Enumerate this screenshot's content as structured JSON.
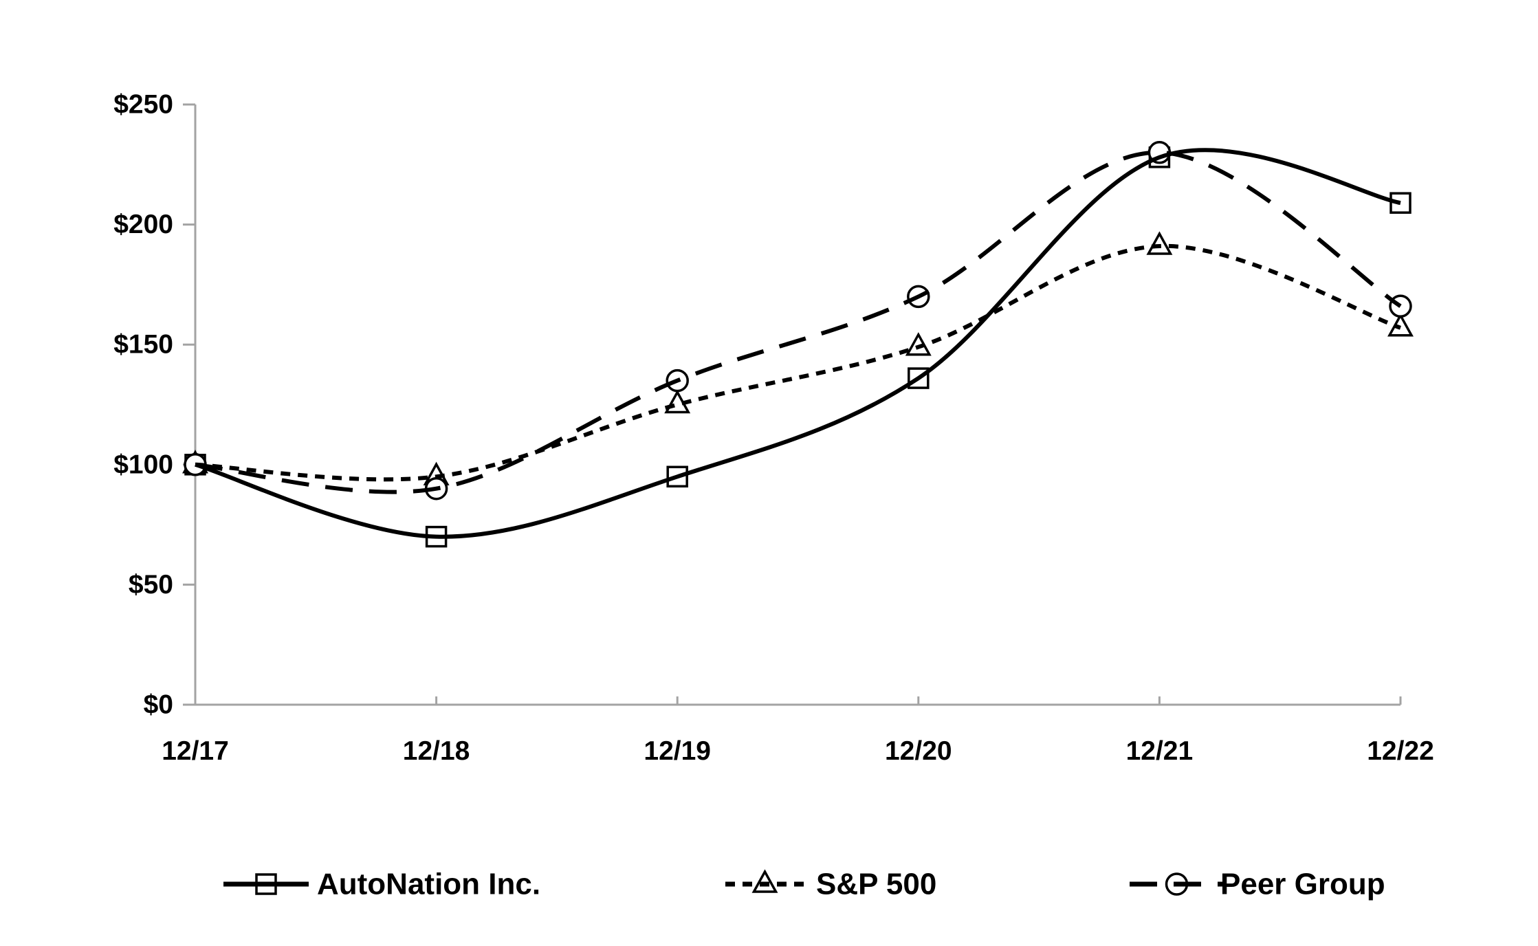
{
  "chart_data": {
    "type": "line",
    "title": "",
    "categories": [
      "12/17",
      "12/18",
      "12/19",
      "12/20",
      "12/21",
      "12/22"
    ],
    "series": [
      {
        "name": "AutoNation Inc.",
        "values": [
          100,
          70,
          95,
          136,
          228,
          209
        ],
        "line_style": "solid",
        "marker": "square"
      },
      {
        "name": "S&P 500",
        "values": [
          100,
          95,
          125,
          149,
          191,
          157
        ],
        "line_style": "short-dash",
        "marker": "triangle"
      },
      {
        "name": "Peer Group",
        "values": [
          100,
          90,
          135,
          170,
          230,
          166
        ],
        "line_style": "long-dash",
        "marker": "circle"
      }
    ],
    "x_axis": {
      "tick_labels": [
        "12/17",
        "12/18",
        "12/19",
        "12/20",
        "12/21",
        "12/22"
      ]
    },
    "y_axis": {
      "tick_labels": [
        "$0",
        "$50",
        "$100",
        "$150",
        "$200",
        "$250"
      ],
      "tick_values": [
        0,
        50,
        100,
        150,
        200,
        250
      ],
      "min": 0,
      "max": 250
    },
    "ylim": [
      0,
      250
    ],
    "grid": false,
    "legend_position": "bottom",
    "colors": {
      "series_line": "#000000",
      "marker_fill": "#ffffff",
      "axis": "#a3a3a3",
      "text": "#000000",
      "background": "#ffffff"
    }
  }
}
